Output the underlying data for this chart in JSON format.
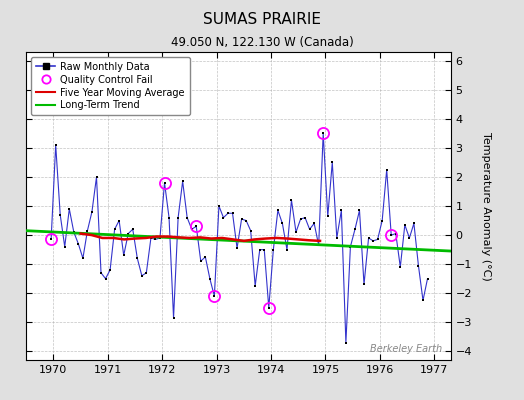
{
  "title": "SUMAS PRAIRIE",
  "subtitle": "49.050 N, 122.130 W (Canada)",
  "ylabel": "Temperature Anomaly (°C)",
  "watermark": "Berkeley Earth",
  "xlim": [
    1969.5,
    1977.3
  ],
  "ylim": [
    -4.3,
    6.3
  ],
  "yticks": [
    -4,
    -3,
    -2,
    -1,
    0,
    1,
    2,
    3,
    4,
    5,
    6
  ],
  "xticks": [
    1970,
    1971,
    1972,
    1973,
    1974,
    1975,
    1976,
    1977
  ],
  "background_color": "#e0e0e0",
  "plot_bg_color": "#ffffff",
  "raw_color": "#3333cc",
  "raw_marker_color": "#000000",
  "qc_color": "#ff00ff",
  "moving_avg_color": "#dd0000",
  "trend_color": "#00bb00",
  "monthly_x": [
    1969.958,
    1970.042,
    1970.125,
    1970.208,
    1970.292,
    1970.375,
    1970.458,
    1970.542,
    1970.625,
    1970.708,
    1970.792,
    1970.875,
    1970.958,
    1971.042,
    1971.125,
    1971.208,
    1971.292,
    1971.375,
    1971.458,
    1971.542,
    1971.625,
    1971.708,
    1971.792,
    1971.875,
    1971.958,
    1972.042,
    1972.125,
    1972.208,
    1972.292,
    1972.375,
    1972.458,
    1972.542,
    1972.625,
    1972.708,
    1972.792,
    1972.875,
    1972.958,
    1973.042,
    1973.125,
    1973.208,
    1973.292,
    1973.375,
    1973.458,
    1973.542,
    1973.625,
    1973.708,
    1973.792,
    1973.875,
    1973.958,
    1974.042,
    1974.125,
    1974.208,
    1974.292,
    1974.375,
    1974.458,
    1974.542,
    1974.625,
    1974.708,
    1974.792,
    1974.875,
    1974.958,
    1975.042,
    1975.125,
    1975.208,
    1975.292,
    1975.375,
    1975.458,
    1975.542,
    1975.625,
    1975.708,
    1975.792,
    1975.875,
    1975.958,
    1976.042,
    1976.125,
    1976.208,
    1976.292,
    1976.375,
    1976.458,
    1976.542,
    1976.625,
    1976.708,
    1976.792,
    1976.875
  ],
  "monthly_y": [
    -0.15,
    3.1,
    0.7,
    -0.4,
    0.9,
    0.1,
    -0.3,
    -0.8,
    0.15,
    0.8,
    2.0,
    -1.3,
    -1.5,
    -1.2,
    0.2,
    0.5,
    -0.7,
    0.05,
    0.2,
    -0.8,
    -1.4,
    -1.3,
    -0.1,
    -0.15,
    -0.1,
    1.8,
    0.6,
    -2.85,
    0.6,
    1.85,
    0.6,
    0.2,
    0.3,
    -0.9,
    -0.75,
    -1.5,
    -2.1,
    1.0,
    0.6,
    0.75,
    0.75,
    -0.45,
    0.55,
    0.5,
    0.15,
    -1.75,
    -0.5,
    -0.5,
    -2.5,
    -0.5,
    0.85,
    0.4,
    -0.5,
    1.2,
    0.1,
    0.55,
    0.6,
    0.2,
    0.4,
    -0.35,
    3.5,
    0.65,
    2.5,
    -0.1,
    0.85,
    -3.7,
    -0.4,
    0.2,
    0.85,
    -1.7,
    -0.1,
    -0.2,
    -0.15,
    0.5,
    2.25,
    0.0,
    0.05,
    -1.1,
    0.35,
    -0.1,
    0.4,
    -1.05,
    -2.25,
    -1.5
  ],
  "qc_fail_indices": [
    0,
    25,
    32,
    36,
    48,
    60,
    75
  ],
  "moving_avg_x": [
    1970.5,
    1970.7,
    1970.9,
    1971.1,
    1971.3,
    1971.5,
    1971.7,
    1971.9,
    1972.1,
    1972.3,
    1972.5,
    1972.7,
    1972.9,
    1973.1,
    1973.3,
    1973.5,
    1973.7,
    1973.9,
    1974.1,
    1974.3,
    1974.5,
    1974.7,
    1974.9
  ],
  "moving_avg_y": [
    0.05,
    0.0,
    -0.1,
    -0.1,
    -0.15,
    -0.12,
    -0.1,
    -0.05,
    -0.05,
    -0.08,
    -0.1,
    -0.08,
    -0.12,
    -0.1,
    -0.15,
    -0.2,
    -0.15,
    -0.12,
    -0.1,
    -0.12,
    -0.15,
    -0.18,
    -0.2
  ],
  "trend_x": [
    1969.5,
    1977.3
  ],
  "trend_y": [
    0.15,
    -0.55
  ]
}
